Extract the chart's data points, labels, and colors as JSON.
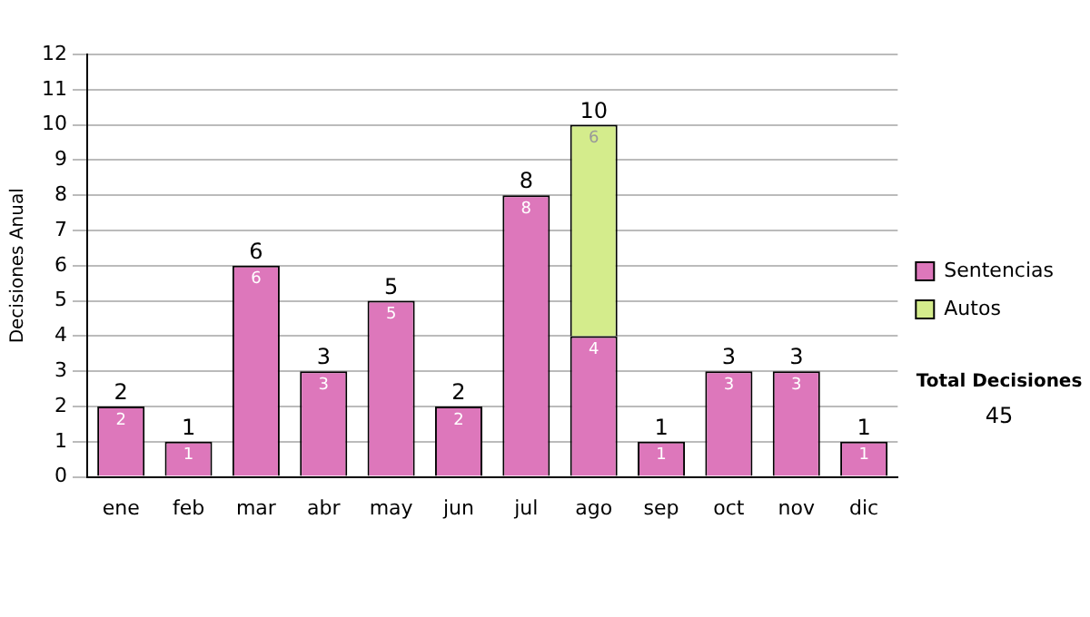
{
  "chart_data": {
    "type": "bar",
    "stacked": true,
    "ylabel": "Decisiones Anual",
    "categories": [
      "ene",
      "feb",
      "mar",
      "abr",
      "may",
      "jun",
      "jul",
      "ago",
      "sep",
      "oct",
      "nov",
      "dic"
    ],
    "series": [
      {
        "name": "Sentencias",
        "color": "#dd77bb",
        "values": [
          2,
          1,
          6,
          3,
          5,
          2,
          8,
          4,
          1,
          3,
          3,
          1
        ]
      },
      {
        "name": "Autos",
        "color": "#d4ec8c",
        "values": [
          null,
          null,
          null,
          null,
          null,
          null,
          null,
          6,
          null,
          null,
          null,
          null
        ]
      }
    ],
    "totals": [
      "2",
      "1",
      "6",
      "3",
      "5",
      "2",
      "8",
      "10",
      "1",
      "3",
      "3",
      "1"
    ],
    "data_labels": true,
    "ylim": [
      0,
      12
    ],
    "yticks": [
      0,
      1,
      2,
      3,
      4,
      5,
      6,
      7,
      8,
      9,
      10,
      11,
      12
    ],
    "grid": "y",
    "legend": "right",
    "annotations": [
      "Total Decisiones",
      "45"
    ]
  }
}
